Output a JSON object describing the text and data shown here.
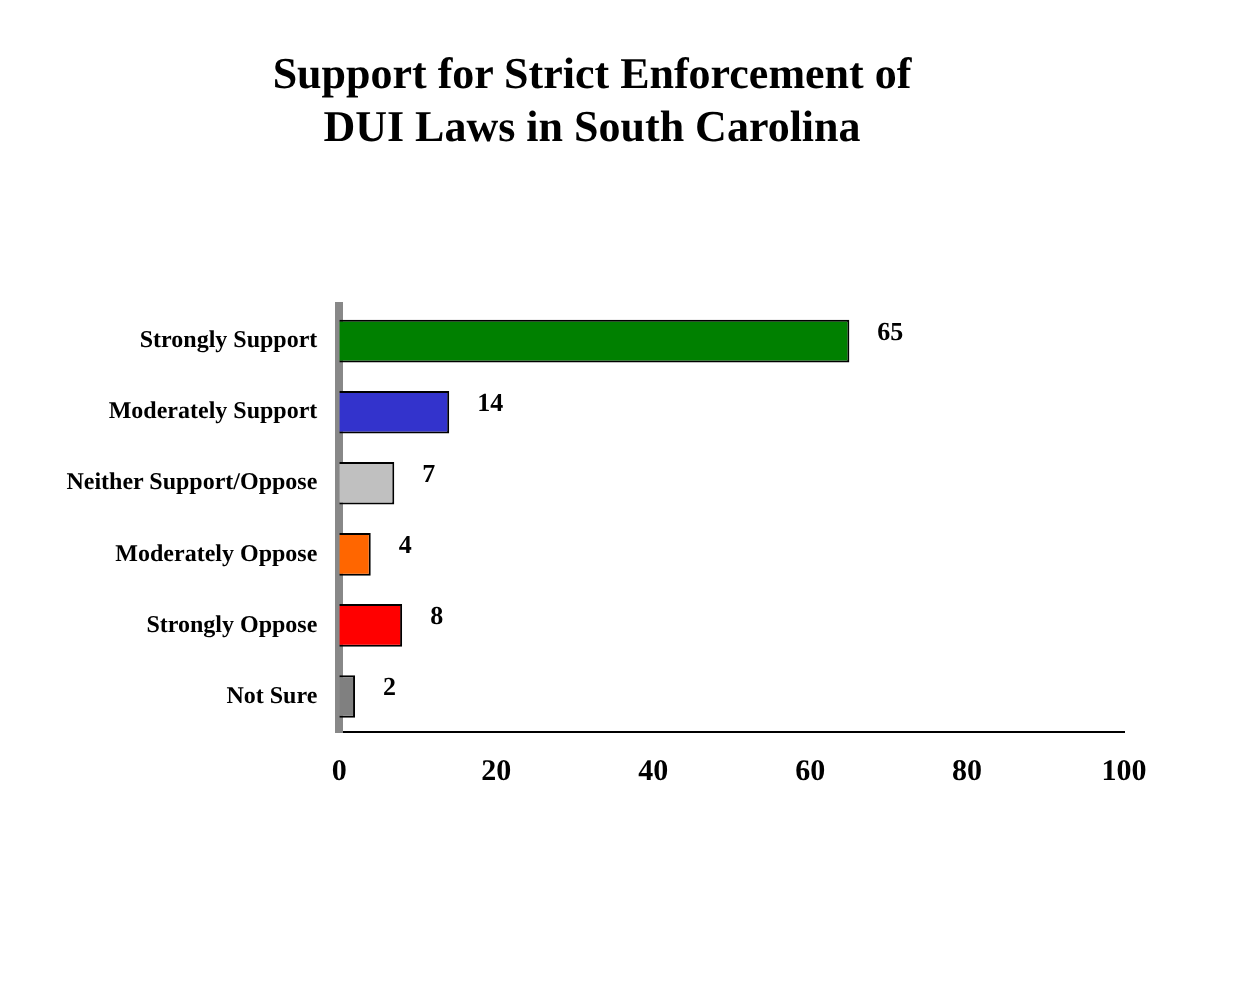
{
  "chart_data": {
    "type": "bar",
    "orientation": "horizontal",
    "title": "Support for Strict Enforcement of\nDUI Laws in South Carolina",
    "categories": [
      "Strongly Support",
      "Moderately Support",
      "Neither Support/Oppose",
      "Moderately Oppose",
      "Strongly Oppose",
      "Not Sure"
    ],
    "values": [
      65,
      14,
      7,
      4,
      8,
      2
    ],
    "colors": [
      "#008000",
      "#3333cc",
      "#c0c0c0",
      "#ff6600",
      "#ff0000",
      "#808080"
    ],
    "xlim": [
      0,
      100
    ],
    "xticks": [
      0,
      20,
      40,
      60,
      80,
      100
    ],
    "grid": false,
    "legend": false,
    "data_labels": true
  }
}
